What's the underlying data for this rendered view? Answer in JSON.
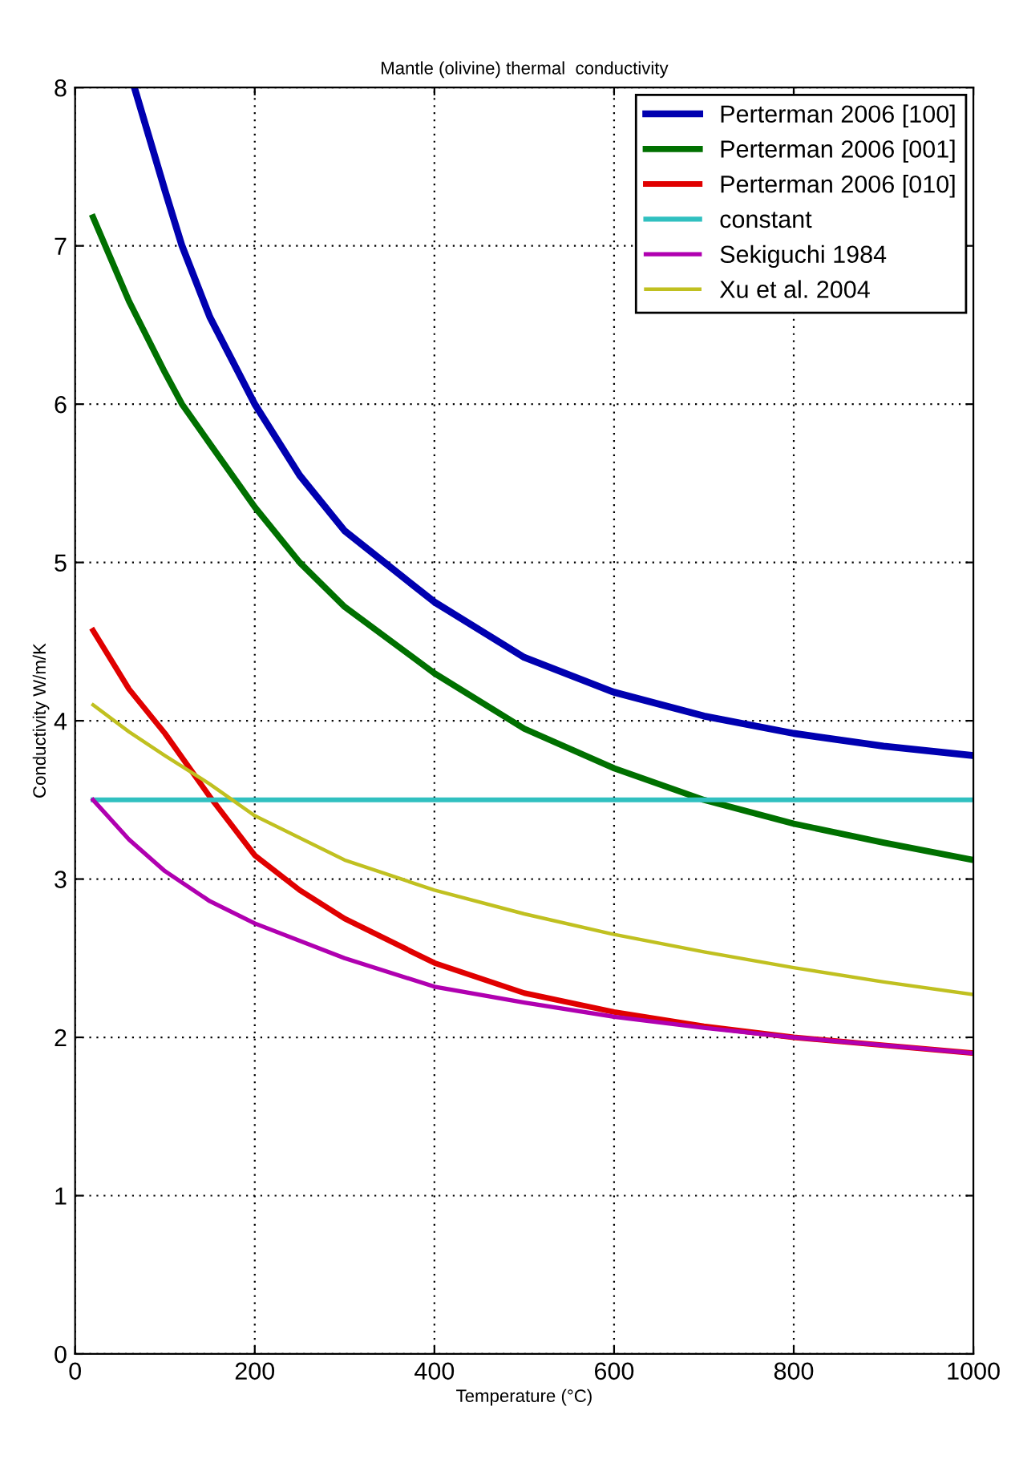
{
  "chart_data": {
    "type": "line",
    "title": "Mantle (olivine) thermal  conductivity",
    "xlabel": "Temperature (°C)",
    "ylabel": "Conductivity W/m/K",
    "xlim": [
      0,
      1000
    ],
    "ylim": [
      0,
      8
    ],
    "xticks": [
      0,
      200,
      400,
      600,
      800,
      1000
    ],
    "yticks": [
      0,
      1,
      2,
      3,
      4,
      5,
      6,
      7,
      8
    ],
    "grid": true,
    "legend": "top right",
    "line_style": "solid",
    "marker": "none",
    "series": [
      {
        "name": "Perterman 2006 [100]",
        "color": "#0000b0",
        "x": [
          66,
          100,
          119,
          150,
          200,
          250,
          300,
          400,
          500,
          600,
          700,
          800,
          900,
          1000
        ],
        "values": [
          8.0,
          7.35,
          7.0,
          6.55,
          6.0,
          5.55,
          5.2,
          4.75,
          4.4,
          4.18,
          4.03,
          3.92,
          3.84,
          3.78
        ]
      },
      {
        "name": "Perterman 2006 [001]",
        "color": "#007000",
        "x": [
          20,
          60,
          100,
          119,
          150,
          200,
          250,
          300,
          400,
          500,
          600,
          700,
          800,
          900,
          1000
        ],
        "values": [
          7.18,
          6.65,
          6.2,
          6.0,
          5.75,
          5.35,
          5.0,
          4.72,
          4.3,
          3.95,
          3.7,
          3.5,
          3.35,
          3.23,
          3.12
        ]
      },
      {
        "name": "Perterman 2006 [010]",
        "color": "#e00000",
        "x": [
          20,
          60,
          100,
          150,
          200,
          250,
          300,
          400,
          500,
          600,
          700,
          800,
          900,
          1000
        ],
        "values": [
          4.57,
          4.2,
          3.92,
          3.52,
          3.15,
          2.93,
          2.75,
          2.47,
          2.28,
          2.16,
          2.07,
          2.0,
          1.95,
          1.9
        ]
      },
      {
        "name": "constant",
        "color": "#30c0c0",
        "x": [
          20,
          1000
        ],
        "values": [
          3.5,
          3.5
        ]
      },
      {
        "name": "Sekiguchi 1984",
        "color": "#b000b0",
        "x": [
          20,
          60,
          100,
          150,
          200,
          300,
          400,
          500,
          600,
          700,
          800,
          900,
          1000
        ],
        "values": [
          3.5,
          3.25,
          3.05,
          2.86,
          2.72,
          2.5,
          2.32,
          2.22,
          2.13,
          2.06,
          2.0,
          1.95,
          1.9
        ]
      },
      {
        "name": "Xu et al. 2004",
        "color": "#c0c020",
        "x": [
          20,
          60,
          100,
          150,
          200,
          300,
          400,
          500,
          600,
          700,
          800,
          900,
          1000
        ],
        "values": [
          4.1,
          3.93,
          3.78,
          3.6,
          3.4,
          3.12,
          2.93,
          2.78,
          2.65,
          2.54,
          2.44,
          2.35,
          2.27
        ]
      }
    ]
  }
}
